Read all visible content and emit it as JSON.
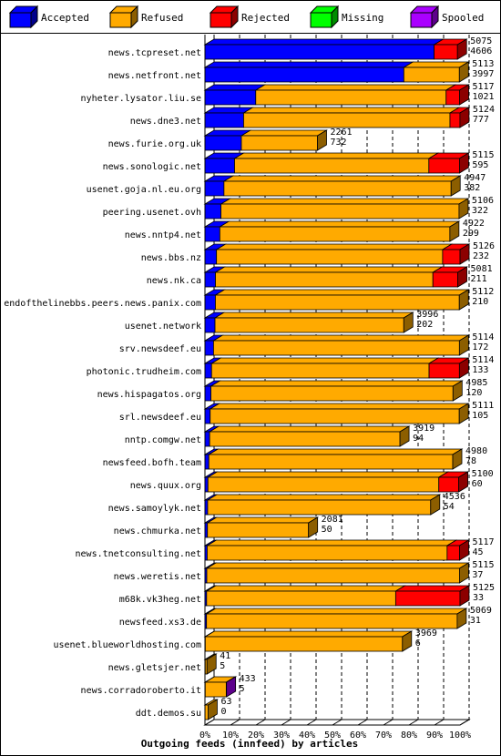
{
  "chart_data": {
    "type": "bar",
    "stacked": true,
    "orientation": "horizontal",
    "title": "Outgoing feeds (innfeed) by articles",
    "xlim": [
      0,
      100
    ],
    "x_ticks": [
      "0%",
      "10%",
      "20%",
      "30%",
      "40%",
      "50%",
      "60%",
      "70%",
      "80%",
      "90%",
      "100%"
    ],
    "legend": [
      {
        "name": "Accepted",
        "color": "#0000ff"
      },
      {
        "name": "Refused",
        "color": "#ffaa00"
      },
      {
        "name": "Rejected",
        "color": "#ff0000"
      },
      {
        "name": "Missing",
        "color": "#00ff00"
      },
      {
        "name": "Spooled",
        "color": "#aa00ff"
      }
    ],
    "rows": [
      {
        "name": "news.tcpreset.net",
        "offered": "5075",
        "accepted_count": "4606",
        "accepted": 4606,
        "refused": 0,
        "rejected": 469,
        "missing": 0,
        "spooled": 0
      },
      {
        "name": "news.netfront.net",
        "offered": "5113",
        "accepted_count": "3997",
        "accepted": 3997,
        "refused": 1116,
        "rejected": 0,
        "missing": 0,
        "spooled": 0
      },
      {
        "name": "nyheter.lysator.liu.se",
        "offered": "5117",
        "accepted_count": "1021",
        "accepted": 1021,
        "refused": 3826,
        "rejected": 270,
        "missing": 0,
        "spooled": 0
      },
      {
        "name": "news.dne3.net",
        "offered": "5124",
        "accepted_count": "777",
        "accepted": 777,
        "refused": 4147,
        "rejected": 200,
        "missing": 0,
        "spooled": 0
      },
      {
        "name": "news.furie.org.uk",
        "offered": "2261",
        "accepted_count": "732",
        "accepted": 732,
        "refused": 1529,
        "rejected": 0,
        "missing": 0,
        "spooled": 0
      },
      {
        "name": "news.sonologic.net",
        "offered": "5115",
        "accepted_count": "595",
        "accepted": 595,
        "refused": 3905,
        "rejected": 615,
        "missing": 0,
        "spooled": 0
      },
      {
        "name": "usenet.goja.nl.eu.org",
        "offered": "4947",
        "accepted_count": "382",
        "accepted": 382,
        "refused": 4565,
        "rejected": 0,
        "missing": 0,
        "spooled": 0
      },
      {
        "name": "peering.usenet.ovh",
        "offered": "5106",
        "accepted_count": "322",
        "accepted": 322,
        "refused": 4784,
        "rejected": 0,
        "missing": 0,
        "spooled": 0
      },
      {
        "name": "news.nntp4.net",
        "offered": "4922",
        "accepted_count": "299",
        "accepted": 299,
        "refused": 4623,
        "rejected": 0,
        "missing": 0,
        "spooled": 0
      },
      {
        "name": "news.bbs.nz",
        "offered": "5126",
        "accepted_count": "232",
        "accepted": 232,
        "refused": 4544,
        "rejected": 350,
        "missing": 0,
        "spooled": 0
      },
      {
        "name": "news.nk.ca",
        "offered": "5081",
        "accepted_count": "211",
        "accepted": 211,
        "refused": 4370,
        "rejected": 500,
        "missing": 0,
        "spooled": 0
      },
      {
        "name": "endofthelinebbs.peers.news.panix.com",
        "offered": "5112",
        "accepted_count": "210",
        "accepted": 210,
        "refused": 4902,
        "rejected": 0,
        "missing": 0,
        "spooled": 0
      },
      {
        "name": "usenet.network",
        "offered": "3996",
        "accepted_count": "202",
        "accepted": 202,
        "refused": 3794,
        "rejected": 0,
        "missing": 0,
        "spooled": 0
      },
      {
        "name": "srv.newsdeef.eu",
        "offered": "5114",
        "accepted_count": "172",
        "accepted": 172,
        "refused": 4942,
        "rejected": 0,
        "missing": 0,
        "spooled": 0
      },
      {
        "name": "photonic.trudheim.com",
        "offered": "5114",
        "accepted_count": "133",
        "accepted": 133,
        "refused": 4371,
        "rejected": 610,
        "missing": 0,
        "spooled": 0
      },
      {
        "name": "news.hispagatos.org",
        "offered": "4985",
        "accepted_count": "120",
        "accepted": 120,
        "refused": 4865,
        "rejected": 0,
        "missing": 0,
        "spooled": 0
      },
      {
        "name": "srl.newsdeef.eu",
        "offered": "5111",
        "accepted_count": "105",
        "accepted": 105,
        "refused": 5006,
        "rejected": 0,
        "missing": 0,
        "spooled": 0
      },
      {
        "name": "nntp.comgw.net",
        "offered": "3919",
        "accepted_count": "94",
        "accepted": 94,
        "refused": 3825,
        "rejected": 0,
        "missing": 0,
        "spooled": 0
      },
      {
        "name": "newsfeed.bofh.team",
        "offered": "4980",
        "accepted_count": "78",
        "accepted": 78,
        "refused": 4902,
        "rejected": 0,
        "missing": 0,
        "spooled": 0
      },
      {
        "name": "news.quux.org",
        "offered": "5100",
        "accepted_count": "60",
        "accepted": 60,
        "refused": 4640,
        "rejected": 400,
        "missing": 0,
        "spooled": 0
      },
      {
        "name": "news.samoylyk.net",
        "offered": "4536",
        "accepted_count": "54",
        "accepted": 54,
        "refused": 4482,
        "rejected": 0,
        "missing": 0,
        "spooled": 0
      },
      {
        "name": "news.chmurka.net",
        "offered": "2081",
        "accepted_count": "50",
        "accepted": 50,
        "refused": 2031,
        "rejected": 0,
        "missing": 0,
        "spooled": 0
      },
      {
        "name": "news.tnetconsulting.net",
        "offered": "5117",
        "accepted_count": "45",
        "accepted": 45,
        "refused": 4822,
        "rejected": 250,
        "missing": 0,
        "spooled": 0
      },
      {
        "name": "news.weretis.net",
        "offered": "5115",
        "accepted_count": "37",
        "accepted": 37,
        "refused": 5078,
        "rejected": 0,
        "missing": 0,
        "spooled": 0
      },
      {
        "name": "m68k.vk3heg.net",
        "offered": "5125",
        "accepted_count": "33",
        "accepted": 33,
        "refused": 3800,
        "rejected": 1292,
        "missing": 0,
        "spooled": 0
      },
      {
        "name": "newsfeed.xs3.de",
        "offered": "5069",
        "accepted_count": "31",
        "accepted": 31,
        "refused": 5038,
        "rejected": 0,
        "missing": 0,
        "spooled": 0
      },
      {
        "name": "usenet.blueworldhosting.com",
        "offered": "3969",
        "accepted_count": "6",
        "accepted": 6,
        "refused": 3963,
        "rejected": 0,
        "missing": 0,
        "spooled": 0
      },
      {
        "name": "news.gletsjer.net",
        "offered": "41",
        "accepted_count": "5",
        "accepted": 5,
        "refused": 36,
        "rejected": 0,
        "missing": 0,
        "spooled": 0
      },
      {
        "name": "news.corradoroberto.it",
        "offered": "433",
        "accepted_count": "5",
        "accepted": 5,
        "refused": 423,
        "rejected": 0,
        "missing": 0,
        "spooled": 5
      },
      {
        "name": "ddt.demos.su",
        "offered": "63",
        "accepted_count": "0",
        "accepted": 0,
        "refused": 63,
        "rejected": 0,
        "missing": 0,
        "spooled": 0
      }
    ]
  }
}
